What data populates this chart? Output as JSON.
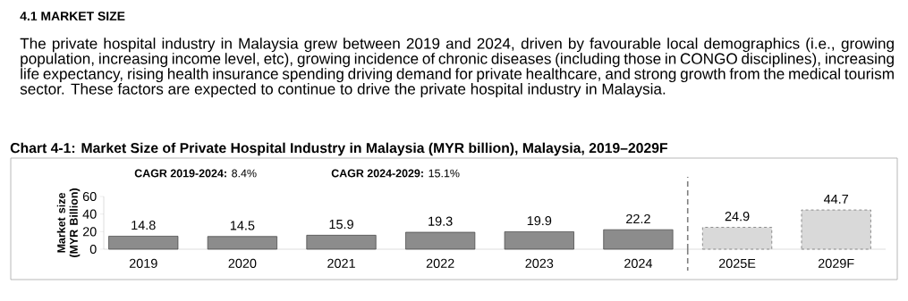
{
  "chart_data": {
    "type": "bar",
    "subtitle": "4.1 MARKET SIZE",
    "title": "Chart 4-1: Market Size of Private Hospital Industry in Malaysia (MYR billion), Malaysia, 2019–2029F",
    "annotations": [
      "The private hospital industry in Malaysia grew between 2019 and 2024, driven by favourable local demographics (i.e., growing population, increasing income level, etc), growing incidence of chronic diseases (including those in CONGO disciplines), increasing life expectancy, rising health insurance spending driving demand for private healthcare, and strong growth from the medical tourism sector. These factors are expected to continue to drive the private hospital industry in Malaysia.",
      "**CAGR 2019-2024:** 8.4%",
      "**CAGR 2024-2029:** 15.1%"
    ],
    "ylabel": "Market size (MYR Billion)",
    "categories": [
      "2019",
      "2020",
      "2021",
      "2022",
      "2023",
      "2024",
      "2025E",
      "2029F"
    ],
    "series": [
      {
        "color": "#8c8c8c",
        "line_style": "solid",
        "values": [
          14.8,
          14.5,
          15.9,
          19.3,
          19.9,
          22.2,
          null,
          null
        ]
      },
      {
        "color": "#d9d9d9",
        "line_style": "dashed",
        "values": [
          null,
          null,
          null,
          null,
          null,
          null,
          24.9,
          44.7
        ]
      }
    ],
    "ylim": [
      0,
      60
    ],
    "yticks": [
      0,
      20,
      40,
      60
    ],
    "data_labels": true
  }
}
